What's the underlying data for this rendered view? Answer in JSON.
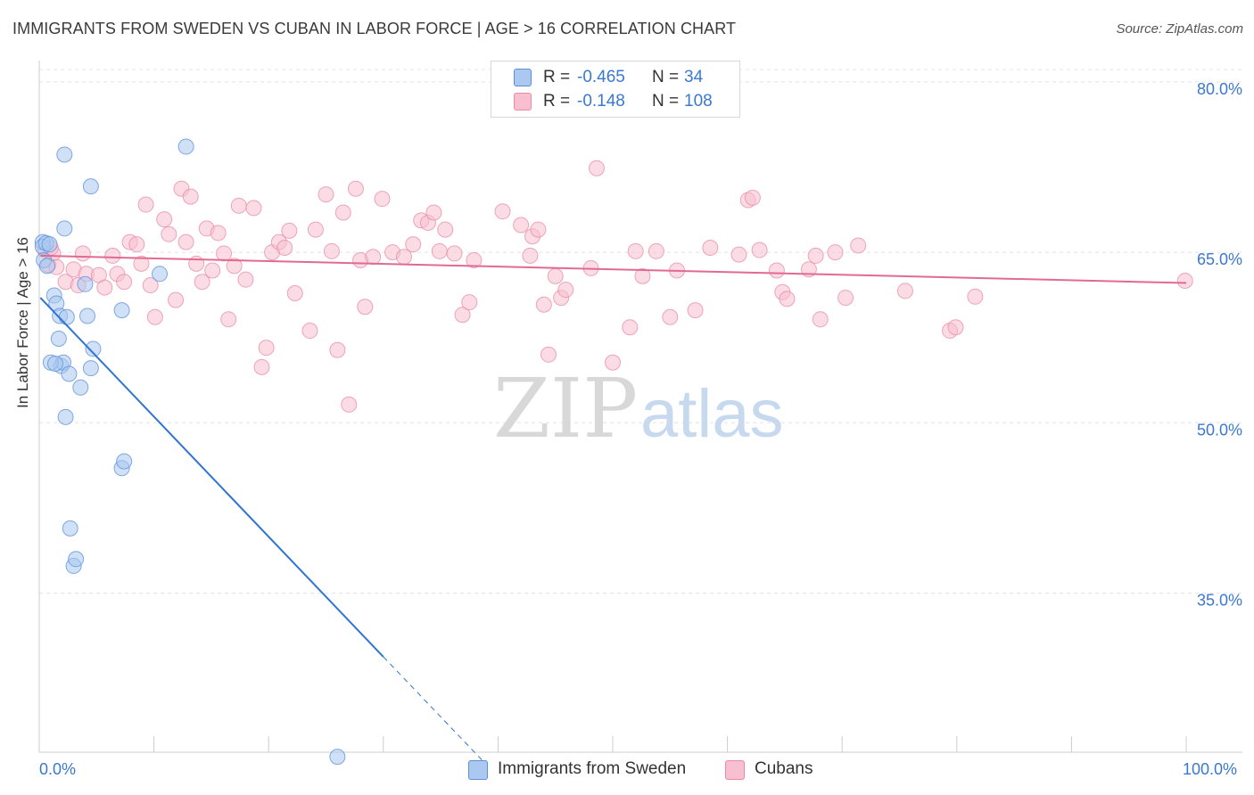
{
  "title": "IMMIGRANTS FROM SWEDEN VS CUBAN IN LABOR FORCE | AGE > 16 CORRELATION CHART",
  "source": "Source: ZipAtlas.com",
  "watermark": {
    "zip": "ZIP",
    "atlas": "atlas"
  },
  "legend": {
    "rows": [
      {
        "r_label": "R =",
        "r_value": "-0.465",
        "n_label": "N =",
        "n_value": "34",
        "color": "#aac8f0",
        "stroke": "#5a8fd8"
      },
      {
        "r_label": "R =",
        "r_value": "-0.148",
        "n_label": "N =",
        "n_value": "108",
        "color": "#f8bfd0",
        "stroke": "#e88aa8"
      }
    ]
  },
  "bottom_legend": [
    {
      "label": "Immigrants from Sweden",
      "color": "#aac8f0",
      "stroke": "#5a8fd8"
    },
    {
      "label": "Cubans",
      "color": "#f8bfd0",
      "stroke": "#e88aa8"
    }
  ],
  "chart_data": {
    "type": "scatter",
    "title": "IMMIGRANTS FROM SWEDEN VS CUBAN IN LABOR FORCE | AGE > 16 CORRELATION CHART",
    "xlabel": "",
    "ylabel": "In Labor Force | Age > 16",
    "xlim": [
      0,
      100
    ],
    "ylim": [
      21,
      82.5
    ],
    "x_tick_labels": [
      "0.0%",
      "100.0%"
    ],
    "y_ticks": [
      35,
      50,
      65,
      80
    ],
    "y_tick_labels": [
      "35.0%",
      "50.0%",
      "65.0%",
      "80.0%"
    ],
    "grid": true,
    "series": [
      {
        "name": "Immigrants from Sweden",
        "color": "#aac8f0",
        "stroke": "#5a8fd8",
        "line_color": "#2f74d0",
        "trend": {
          "x1": 0.1,
          "y1": 61.0,
          "x2": 30.0,
          "y2": 29.4,
          "dash_to_x": 39.0
        },
        "points": [
          [
            0.3,
            65.9
          ],
          [
            0.3,
            65.5
          ],
          [
            0.4,
            64.3
          ],
          [
            0.6,
            65.8
          ],
          [
            0.7,
            63.8
          ],
          [
            1.3,
            61.2
          ],
          [
            1.5,
            60.5
          ],
          [
            1.7,
            57.4
          ],
          [
            1.8,
            59.4
          ],
          [
            1.9,
            55.0
          ],
          [
            2.1,
            55.3
          ],
          [
            2.2,
            73.6
          ],
          [
            2.2,
            67.1
          ],
          [
            2.3,
            50.5
          ],
          [
            2.4,
            59.3
          ],
          [
            2.6,
            54.3
          ],
          [
            2.7,
            40.7
          ],
          [
            3.0,
            37.4
          ],
          [
            3.2,
            38.0
          ],
          [
            3.6,
            53.1
          ],
          [
            4.0,
            62.2
          ],
          [
            4.2,
            59.4
          ],
          [
            4.5,
            70.8
          ],
          [
            4.5,
            54.8
          ],
          [
            4.7,
            56.5
          ],
          [
            7.2,
            59.9
          ],
          [
            7.2,
            46.0
          ],
          [
            7.4,
            46.6
          ],
          [
            10.5,
            63.1
          ],
          [
            12.8,
            74.3
          ],
          [
            26.0,
            20.6
          ],
          [
            1.0,
            55.3
          ],
          [
            1.4,
            55.2
          ],
          [
            0.9,
            65.7
          ]
        ]
      },
      {
        "name": "Cubans",
        "color": "#f8bfd0",
        "stroke": "#e88aa8",
        "line_color": "#e26a92",
        "trend": {
          "x1": 0.1,
          "y1": 64.7,
          "x2": 100.0,
          "y2": 62.3
        },
        "points": [
          [
            0.5,
            65.2
          ],
          [
            0.8,
            63.9
          ],
          [
            1.2,
            64.9
          ],
          [
            1.5,
            63.7
          ],
          [
            2.3,
            62.4
          ],
          [
            3.0,
            63.5
          ],
          [
            3.4,
            62.1
          ],
          [
            3.8,
            64.9
          ],
          [
            4.1,
            63.1
          ],
          [
            5.2,
            63.0
          ],
          [
            5.7,
            61.9
          ],
          [
            6.4,
            64.7
          ],
          [
            6.8,
            63.1
          ],
          [
            7.4,
            62.4
          ],
          [
            7.9,
            65.9
          ],
          [
            8.5,
            65.7
          ],
          [
            8.9,
            64.0
          ],
          [
            9.3,
            69.2
          ],
          [
            9.7,
            62.1
          ],
          [
            10.1,
            59.3
          ],
          [
            10.9,
            67.9
          ],
          [
            11.3,
            66.6
          ],
          [
            11.9,
            60.8
          ],
          [
            12.4,
            70.6
          ],
          [
            12.8,
            65.9
          ],
          [
            13.2,
            69.9
          ],
          [
            13.7,
            64.0
          ],
          [
            14.2,
            62.4
          ],
          [
            14.6,
            67.1
          ],
          [
            15.1,
            63.4
          ],
          [
            15.6,
            66.7
          ],
          [
            16.1,
            64.9
          ],
          [
            16.5,
            59.1
          ],
          [
            17.0,
            63.8
          ],
          [
            17.4,
            69.1
          ],
          [
            18.0,
            62.6
          ],
          [
            18.7,
            68.9
          ],
          [
            19.4,
            54.9
          ],
          [
            19.8,
            56.6
          ],
          [
            20.3,
            65.0
          ],
          [
            20.9,
            65.9
          ],
          [
            21.4,
            65.4
          ],
          [
            21.8,
            66.9
          ],
          [
            22.3,
            61.4
          ],
          [
            23.6,
            58.1
          ],
          [
            24.1,
            67.0
          ],
          [
            25.0,
            70.1
          ],
          [
            25.5,
            65.1
          ],
          [
            26.0,
            56.4
          ],
          [
            26.5,
            68.5
          ],
          [
            27.0,
            51.6
          ],
          [
            27.6,
            70.6
          ],
          [
            28.0,
            64.3
          ],
          [
            28.4,
            60.2
          ],
          [
            29.1,
            64.6
          ],
          [
            29.9,
            69.7
          ],
          [
            30.8,
            65.0
          ],
          [
            31.8,
            64.6
          ],
          [
            32.6,
            65.7
          ],
          [
            33.3,
            67.8
          ],
          [
            33.9,
            67.6
          ],
          [
            34.4,
            68.5
          ],
          [
            34.9,
            65.1
          ],
          [
            35.4,
            67.0
          ],
          [
            36.2,
            64.9
          ],
          [
            36.9,
            59.5
          ],
          [
            37.5,
            60.6
          ],
          [
            37.9,
            64.3
          ],
          [
            40.4,
            68.6
          ],
          [
            42.0,
            67.4
          ],
          [
            42.8,
            64.7
          ],
          [
            43.0,
            66.4
          ],
          [
            43.5,
            67.0
          ],
          [
            44.0,
            60.4
          ],
          [
            44.4,
            56.0
          ],
          [
            45.0,
            62.9
          ],
          [
            45.5,
            61.0
          ],
          [
            45.9,
            61.7
          ],
          [
            48.6,
            72.4
          ],
          [
            48.1,
            63.6
          ],
          [
            50.0,
            55.3
          ],
          [
            51.5,
            58.4
          ],
          [
            52.0,
            65.1
          ],
          [
            52.6,
            62.9
          ],
          [
            53.8,
            65.1
          ],
          [
            55.0,
            59.3
          ],
          [
            55.6,
            63.4
          ],
          [
            57.2,
            59.9
          ],
          [
            58.5,
            65.4
          ],
          [
            61.0,
            64.8
          ],
          [
            61.8,
            69.6
          ],
          [
            62.2,
            69.8
          ],
          [
            62.8,
            65.2
          ],
          [
            64.3,
            63.4
          ],
          [
            64.8,
            61.5
          ],
          [
            65.2,
            60.9
          ],
          [
            67.1,
            63.5
          ],
          [
            67.7,
            64.7
          ],
          [
            68.1,
            59.1
          ],
          [
            69.4,
            65.0
          ],
          [
            70.3,
            61.0
          ],
          [
            71.4,
            65.6
          ],
          [
            75.5,
            61.6
          ],
          [
            79.4,
            58.1
          ],
          [
            79.9,
            58.4
          ],
          [
            81.6,
            61.1
          ],
          [
            99.9,
            62.5
          ],
          [
            1.0,
            65.4
          ]
        ]
      }
    ]
  }
}
